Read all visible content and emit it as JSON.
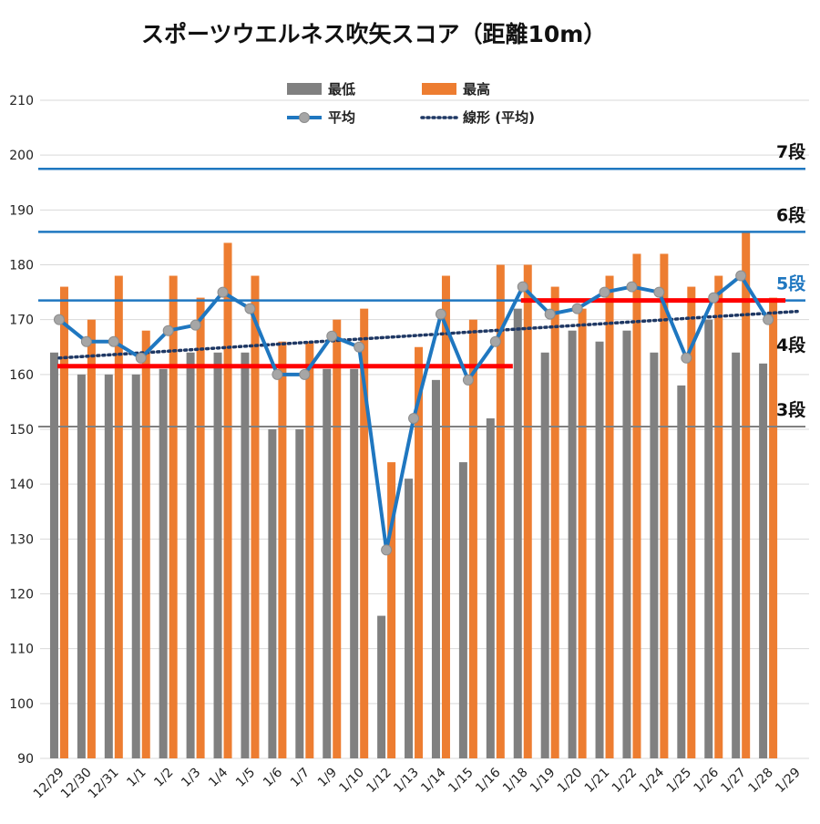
{
  "chart_data": {
    "type": "bar",
    "title": "スポーツウエルネス吹矢スコア（距離10m）",
    "xlabel": "",
    "ylabel": "",
    "ylim": [
      90,
      210
    ],
    "yticks": [
      90,
      100,
      110,
      120,
      130,
      140,
      150,
      160,
      170,
      180,
      190,
      200,
      210
    ],
    "grid": true,
    "legend_placement": "top-center",
    "categories": [
      "12/29",
      "12/30",
      "12/31",
      "1/1",
      "1/2",
      "1/3",
      "1/4",
      "1/5",
      "1/6",
      "1/7",
      "1/9",
      "1/10",
      "1/12",
      "1/13",
      "1/14",
      "1/15",
      "1/16",
      "1/18",
      "1/19",
      "1/20",
      "1/21",
      "1/22",
      "1/24",
      "1/25",
      "1/26",
      "1/27",
      "1/28",
      "1/29"
    ],
    "series": [
      {
        "name": "最低",
        "kind": "bar",
        "color": "#808080",
        "values": [
          164,
          160,
          160,
          160,
          161,
          164,
          164,
          164,
          150,
          150,
          161,
          161,
          116,
          141,
          159,
          144,
          152,
          172,
          164,
          168,
          166,
          168,
          164,
          158,
          170,
          164,
          162,
          null
        ]
      },
      {
        "name": "最高",
        "kind": "bar",
        "color": "#ed7d31",
        "values": [
          176,
          170,
          178,
          168,
          178,
          174,
          184,
          178,
          166,
          166,
          170,
          172,
          144,
          165,
          178,
          170,
          180,
          180,
          176,
          172,
          178,
          182,
          182,
          176,
          178,
          186,
          174,
          null
        ]
      },
      {
        "name": "平均",
        "kind": "line",
        "color": "#1f77c0",
        "marker_color": "#a6a6a6",
        "values": [
          170,
          166,
          166,
          163,
          168,
          169,
          175,
          172,
          160,
          160,
          167,
          165,
          128,
          152,
          171,
          159,
          166,
          176,
          171,
          172,
          175,
          176,
          175,
          163,
          174,
          178,
          170,
          null
        ]
      },
      {
        "name": "線形 (平均)",
        "kind": "trendline",
        "color": "#1f3864",
        "start_value": 163,
        "end_value": 171.5
      }
    ],
    "reference_lines": [
      {
        "label": "7段",
        "value": 197.5,
        "color": "#1f77c0",
        "label_color": "#111111"
      },
      {
        "label": "6段",
        "value": 186,
        "color": "#1f77c0",
        "label_color": "#111111"
      },
      {
        "label": "5段",
        "value": 173.5,
        "color": "#1f77c0",
        "label_color": "#1f77c0"
      },
      {
        "label": "4段",
        "value": null,
        "color": "#1f77c0",
        "label_color": "#111111"
      },
      {
        "label": "3段",
        "value": 150.5,
        "color": "#808080",
        "label_color": "#111111"
      }
    ],
    "period_averages": [
      {
        "value": 161.5,
        "from": "12/29",
        "to": "1/16",
        "color": "#ff0000"
      },
      {
        "value": 173.5,
        "from": "1/18",
        "to": "1/28",
        "color": "#ff0000"
      }
    ]
  }
}
